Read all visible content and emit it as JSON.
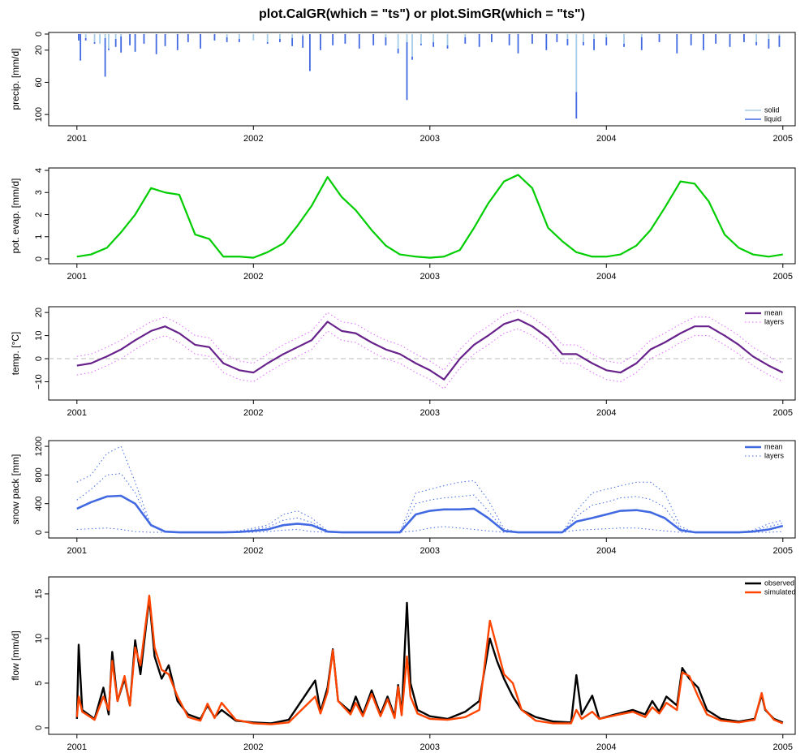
{
  "title": "plot.CalGR(which = \"ts\") or plot.SimGR(which = \"ts\")",
  "chart_data": [
    {
      "type": "bar",
      "ylabel": "precip. [mm/d]",
      "xlim": [
        2000.84,
        2005.07
      ],
      "xticks": [
        2001,
        2002,
        2003,
        2004,
        2005
      ],
      "ylim": [
        114,
        -2
      ],
      "yticks": [
        0,
        20,
        60,
        100
      ],
      "legend": "bottom right",
      "x": [
        2001.01,
        2001.02,
        2001.05,
        2001.1,
        2001.13,
        2001.16,
        2001.18,
        2001.22,
        2001.25,
        2001.3,
        2001.33,
        2001.38,
        2001.45,
        2001.5,
        2001.57,
        2001.63,
        2001.7,
        2001.78,
        2001.85,
        2001.92,
        2002,
        2002.08,
        2002.15,
        2002.22,
        2002.28,
        2002.32,
        2002.38,
        2002.45,
        2002.52,
        2002.6,
        2002.68,
        2002.75,
        2002.82,
        2002.87,
        2002.9,
        2002.95,
        2003.02,
        2003.1,
        2003.2,
        2003.28,
        2003.35,
        2003.45,
        2003.5,
        2003.58,
        2003.66,
        2003.72,
        2003.78,
        2003.83,
        2003.87,
        2003.93,
        2004,
        2004.1,
        2004.2,
        2004.3,
        2004.4,
        2004.48,
        2004.55,
        2004.62,
        2004.7,
        2004.78,
        2004.85,
        2004.92,
        2004.98
      ],
      "series": [
        {
          "name": "solid",
          "color": "#a4cbe8",
          "values": [
            0,
            0,
            5,
            10,
            12,
            5,
            18,
            6,
            3,
            0,
            0,
            0,
            0,
            0,
            0,
            0,
            0,
            0,
            4,
            6,
            8,
            10,
            6,
            5,
            2,
            0,
            0,
            0,
            0,
            0,
            0,
            4,
            18,
            10,
            28,
            12,
            10,
            14,
            4,
            0,
            0,
            0,
            0,
            0,
            0,
            0,
            6,
            72,
            10,
            6,
            4,
            12,
            4,
            0,
            0,
            0,
            0,
            0,
            0,
            0,
            10,
            6,
            2
          ]
        },
        {
          "name": "liquid",
          "color": "#4169e1",
          "values": [
            8,
            33,
            3,
            2,
            0,
            48,
            2,
            10,
            20,
            14,
            22,
            12,
            25,
            15,
            20,
            10,
            18,
            8,
            6,
            4,
            0,
            2,
            4,
            10,
            15,
            46,
            20,
            14,
            12,
            18,
            14,
            10,
            6,
            72,
            4,
            2,
            6,
            4,
            8,
            16,
            10,
            14,
            24,
            12,
            20,
            10,
            8,
            33,
            4,
            14,
            10,
            4,
            16,
            10,
            24,
            14,
            20,
            12,
            16,
            10,
            4,
            12,
            14
          ]
        }
      ]
    },
    {
      "type": "line",
      "ylabel": "pot. evap. [mm/d]",
      "xlim": [
        2000.84,
        2005.07
      ],
      "xticks": [
        2001,
        2002,
        2003,
        2004,
        2005
      ],
      "ylim": [
        -0.22,
        4.11
      ],
      "yticks": [
        0,
        1,
        2,
        3,
        4
      ],
      "x": [
        2001,
        2001.08,
        2001.17,
        2001.25,
        2001.33,
        2001.42,
        2001.5,
        2001.58,
        2001.67,
        2001.75,
        2001.83,
        2001.92,
        2002,
        2002.08,
        2002.17,
        2002.25,
        2002.33,
        2002.42,
        2002.5,
        2002.58,
        2002.67,
        2002.75,
        2002.83,
        2002.92,
        2003,
        2003.08,
        2003.17,
        2003.25,
        2003.33,
        2003.42,
        2003.5,
        2003.58,
        2003.67,
        2003.75,
        2003.83,
        2003.92,
        2004,
        2004.08,
        2004.17,
        2004.25,
        2004.33,
        2004.42,
        2004.5,
        2004.58,
        2004.67,
        2004.75,
        2004.83,
        2004.92,
        2005
      ],
      "series": [
        {
          "name": "pot. evap.",
          "color": "#00cd00",
          "width": 2.2,
          "values": [
            0.1,
            0.2,
            0.5,
            1.2,
            2.0,
            3.2,
            3.0,
            2.9,
            1.1,
            0.9,
            0.1,
            0.1,
            0.05,
            0.3,
            0.7,
            1.5,
            2.4,
            3.7,
            2.8,
            2.2,
            1.3,
            0.6,
            0.2,
            0.1,
            0.05,
            0.1,
            0.4,
            1.4,
            2.5,
            3.5,
            3.8,
            3.2,
            1.4,
            0.8,
            0.3,
            0.1,
            0.1,
            0.2,
            0.6,
            1.3,
            2.3,
            3.5,
            3.4,
            2.6,
            1.1,
            0.5,
            0.2,
            0.1,
            0.2
          ]
        }
      ]
    },
    {
      "type": "line",
      "ylabel": "temp. [°C]",
      "xlim": [
        2000.84,
        2005.07
      ],
      "xticks": [
        2001,
        2002,
        2003,
        2004,
        2005
      ],
      "ylim": [
        -17.9,
        22.5
      ],
      "yticks": [
        20,
        10,
        0,
        {
          "value": -10,
          "label": "−10"
        }
      ],
      "hline": 0,
      "legend": "top right",
      "x": [
        2001,
        2001.08,
        2001.17,
        2001.25,
        2001.33,
        2001.42,
        2001.5,
        2001.58,
        2001.67,
        2001.75,
        2001.83,
        2001.92,
        2002,
        2002.08,
        2002.17,
        2002.25,
        2002.33,
        2002.42,
        2002.5,
        2002.58,
        2002.67,
        2002.75,
        2002.83,
        2002.92,
        2003,
        2003.08,
        2003.17,
        2003.25,
        2003.33,
        2003.42,
        2003.5,
        2003.58,
        2003.67,
        2003.75,
        2003.83,
        2003.92,
        2004,
        2004.08,
        2004.17,
        2004.25,
        2004.33,
        2004.42,
        2004.5,
        2004.58,
        2004.67,
        2004.75,
        2004.83,
        2004.92,
        2005
      ],
      "series": [
        {
          "name": "layers",
          "color": "#e066ff",
          "dash": "dotted",
          "width": 1,
          "values": [
            1,
            2,
            5,
            8,
            12,
            16,
            18,
            15,
            10,
            9,
            2,
            -1,
            -2,
            2,
            6,
            9,
            12,
            20,
            16,
            15,
            11,
            8,
            6,
            2,
            -1,
            -5,
            4,
            10,
            14,
            19,
            21,
            18,
            13,
            6,
            6,
            2,
            -1,
            -2,
            2,
            8,
            11,
            15,
            18,
            18,
            14,
            10,
            5,
            1,
            -2
          ]
        },
        {
          "name": "layers",
          "color": "#e066ff",
          "dash": "dotted",
          "width": 1,
          "values": [
            -7,
            -6,
            -3,
            0,
            4,
            8,
            10,
            7,
            2,
            1,
            -6,
            -9,
            -10,
            -6,
            -2,
            1,
            4,
            12,
            8,
            7,
            3,
            0,
            -2,
            -6,
            -9,
            -13,
            -4,
            2,
            6,
            11,
            13,
            10,
            5,
            -2,
            -2,
            -6,
            -9,
            -10,
            -6,
            0,
            3,
            7,
            10,
            10,
            6,
            2,
            -3,
            -7,
            -10
          ]
        },
        {
          "name": "mean",
          "color": "#68228b",
          "width": 2.2,
          "values": [
            -3,
            -2,
            1,
            4,
            8,
            12,
            14,
            11,
            6,
            5,
            -2,
            -5,
            -6,
            -2,
            2,
            5,
            8,
            16,
            12,
            11,
            7,
            4,
            2,
            -2,
            -5,
            -9,
            0,
            6,
            10,
            15,
            17,
            14,
            9,
            2,
            2,
            -2,
            -5,
            -6,
            -2,
            4,
            7,
            11,
            14,
            14,
            10,
            6,
            1,
            -3,
            -6
          ]
        }
      ]
    },
    {
      "type": "line",
      "ylabel": "snow pack [mm]",
      "xlim": [
        2000.84,
        2005.07
      ],
      "xticks": [
        2001,
        2002,
        2003,
        2004,
        2005
      ],
      "ylim": [
        -79,
        1280
      ],
      "yticks": [
        0,
        400,
        800,
        1200
      ],
      "legend": "top right",
      "x": [
        2001,
        2001.08,
        2001.17,
        2001.25,
        2001.33,
        2001.42,
        2001.5,
        2001.58,
        2001.67,
        2001.75,
        2001.83,
        2001.92,
        2002,
        2002.08,
        2002.17,
        2002.25,
        2002.33,
        2002.42,
        2002.5,
        2002.58,
        2002.67,
        2002.75,
        2002.83,
        2002.92,
        2003,
        2003.08,
        2003.17,
        2003.25,
        2003.33,
        2003.42,
        2003.5,
        2003.58,
        2003.67,
        2003.75,
        2003.83,
        2003.92,
        2004,
        2004.08,
        2004.17,
        2004.25,
        2004.33,
        2004.42,
        2004.5,
        2004.58,
        2004.67,
        2004.75,
        2004.83,
        2004.92,
        2005
      ],
      "series": [
        {
          "name": "layers",
          "color": "#4169e1",
          "dash": "dotted",
          "width": 1,
          "values": [
            700,
            800,
            1100,
            1200,
            700,
            100,
            0,
            0,
            0,
            0,
            0,
            20,
            60,
            100,
            250,
            300,
            200,
            20,
            0,
            0,
            0,
            0,
            0,
            550,
            600,
            650,
            700,
            720,
            450,
            50,
            0,
            0,
            0,
            0,
            300,
            550,
            600,
            650,
            700,
            700,
            550,
            80,
            0,
            0,
            0,
            0,
            30,
            120,
            170
          ]
        },
        {
          "name": "layers",
          "color": "#4169e1",
          "dash": "dotted",
          "width": 1,
          "values": [
            450,
            600,
            800,
            820,
            550,
            90,
            0,
            0,
            0,
            0,
            0,
            10,
            40,
            70,
            170,
            200,
            140,
            10,
            0,
            0,
            0,
            0,
            0,
            400,
            450,
            480,
            500,
            520,
            300,
            30,
            0,
            0,
            0,
            0,
            220,
            380,
            420,
            480,
            500,
            460,
            350,
            50,
            0,
            0,
            0,
            0,
            20,
            80,
            130
          ]
        },
        {
          "name": "layers",
          "color": "#4169e1",
          "dash": "dotted",
          "width": 1,
          "values": [
            40,
            50,
            60,
            40,
            10,
            0,
            0,
            0,
            0,
            0,
            0,
            0,
            0,
            10,
            30,
            40,
            10,
            0,
            0,
            0,
            0,
            0,
            0,
            20,
            60,
            80,
            60,
            40,
            20,
            0,
            0,
            0,
            0,
            0,
            30,
            40,
            50,
            60,
            60,
            40,
            20,
            0,
            0,
            0,
            0,
            0,
            0,
            0,
            10
          ]
        },
        {
          "name": "mean",
          "color": "#4169e1",
          "width": 2.6,
          "values": [
            330,
            420,
            500,
            510,
            400,
            100,
            10,
            0,
            0,
            0,
            0,
            5,
            20,
            40,
            100,
            120,
            100,
            10,
            0,
            0,
            0,
            0,
            0,
            250,
            300,
            320,
            320,
            330,
            200,
            20,
            0,
            0,
            0,
            0,
            150,
            200,
            250,
            300,
            310,
            280,
            200,
            30,
            0,
            0,
            0,
            0,
            10,
            40,
            90
          ]
        }
      ]
    },
    {
      "type": "line",
      "ylabel": "flow [mm/d]",
      "xlim": [
        2000.84,
        2005.07
      ],
      "xticks": [
        2001,
        2002,
        2003,
        2004,
        2005
      ],
      "ylim": [
        -0.73,
        16.9
      ],
      "yticks": [
        0,
        5,
        10,
        15
      ],
      "legend": "top right",
      "x": [
        2001,
        2001.01,
        2001.03,
        2001.1,
        2001.15,
        2001.18,
        2001.2,
        2001.23,
        2001.27,
        2001.3,
        2001.33,
        2001.36,
        2001.41,
        2001.44,
        2001.48,
        2001.52,
        2001.57,
        2001.63,
        2001.7,
        2001.74,
        2001.78,
        2001.82,
        2001.9,
        2002,
        2002.1,
        2002.2,
        2002.35,
        2002.38,
        2002.42,
        2002.45,
        2002.48,
        2002.55,
        2002.58,
        2002.62,
        2002.67,
        2002.72,
        2002.76,
        2002.8,
        2002.82,
        2002.84,
        2002.87,
        2002.89,
        2002.93,
        2003,
        2003.1,
        2003.2,
        2003.28,
        2003.34,
        2003.38,
        2003.42,
        2003.47,
        2003.52,
        2003.6,
        2003.7,
        2003.8,
        2003.83,
        2003.86,
        2003.92,
        2003.96,
        2004.05,
        2004.15,
        2004.22,
        2004.26,
        2004.3,
        2004.34,
        2004.4,
        2004.43,
        2004.47,
        2004.52,
        2004.57,
        2004.65,
        2004.75,
        2004.84,
        2004.88,
        2004.9,
        2004.95,
        2005
      ],
      "series": [
        {
          "name": "observed",
          "color": "#000000",
          "width": 2.4,
          "values": [
            1.0,
            9.3,
            2.0,
            1.0,
            4.5,
            1.5,
            8.5,
            3.0,
            5.5,
            2.5,
            9.8,
            6.0,
            14.5,
            8.0,
            5.5,
            7.0,
            3.0,
            1.5,
            1.0,
            2.5,
            1.2,
            2.0,
            0.8,
            0.6,
            0.5,
            0.9,
            5.3,
            1.8,
            4.5,
            8.8,
            3.0,
            1.8,
            3.5,
            1.5,
            4.2,
            1.5,
            3.5,
            1.3,
            4.8,
            1.5,
            14.0,
            5.0,
            2.0,
            1.3,
            1.0,
            1.8,
            3.0,
            10.0,
            7.5,
            5.5,
            3.5,
            2.0,
            1.2,
            0.7,
            0.6,
            5.9,
            1.5,
            3.6,
            1.0,
            1.5,
            2.0,
            1.5,
            3.0,
            1.8,
            3.5,
            2.5,
            6.7,
            5.5,
            4.5,
            2.0,
            1.0,
            0.7,
            1.0,
            3.7,
            2.0,
            1.0,
            0.6
          ]
        },
        {
          "name": "simulated",
          "color": "#ff4500",
          "width": 2.4,
          "values": [
            1.2,
            3.5,
            1.8,
            0.9,
            3.5,
            2.0,
            7.5,
            3.0,
            5.8,
            2.5,
            9.0,
            7.0,
            14.8,
            9.0,
            6.5,
            6.0,
            3.5,
            1.2,
            0.8,
            2.7,
            1.1,
            2.8,
            0.9,
            0.5,
            0.4,
            0.6,
            3.5,
            1.6,
            4.0,
            8.7,
            3.0,
            1.5,
            2.8,
            1.3,
            3.8,
            1.3,
            3.2,
            1.1,
            4.6,
            1.4,
            8.0,
            3.5,
            1.6,
            1.0,
            0.9,
            1.2,
            2.0,
            12.0,
            9.0,
            6.0,
            5.0,
            2.0,
            0.8,
            0.5,
            0.5,
            2.0,
            1.0,
            1.8,
            1.0,
            1.4,
            1.8,
            1.2,
            2.3,
            1.6,
            2.8,
            2.0,
            6.2,
            5.8,
            3.5,
            1.5,
            0.8,
            0.6,
            0.9,
            3.9,
            2.1,
            0.9,
            0.5
          ]
        }
      ]
    }
  ]
}
